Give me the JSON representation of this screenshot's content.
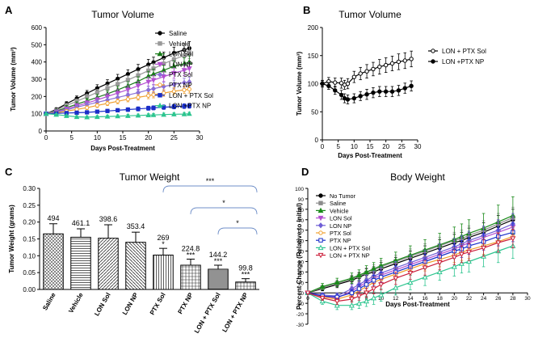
{
  "chart_data": [
    {
      "panel": "A",
      "type": "line",
      "title": "Tumor Volume",
      "xlabel": "Days Post-Treatment",
      "ylabel": "Tumor Volume (mm³)",
      "xlim": [
        0,
        30
      ],
      "ylim": [
        0,
        600
      ],
      "xticks": [
        0,
        5,
        10,
        15,
        20,
        25,
        30
      ],
      "yticks": [
        0,
        100,
        200,
        300,
        400,
        500,
        600
      ],
      "x": [
        0,
        2,
        4,
        6,
        8,
        10,
        12,
        14,
        16,
        18,
        20,
        21,
        23,
        25,
        27,
        28
      ],
      "series": [
        {
          "name": "Saline",
          "color": "#000000",
          "marker": "circle",
          "values": [
            100,
            125,
            158,
            188,
            218,
            248,
            275,
            303,
            330,
            358,
            385,
            398,
            425,
            452,
            470,
            480
          ],
          "error": [
            8,
            10,
            12,
            15,
            17,
            20,
            22,
            25,
            25,
            28,
            30,
            30,
            32,
            34,
            36,
            38
          ]
        },
        {
          "name": "Vehicle",
          "color": "#999999",
          "marker": "square",
          "values": [
            100,
            120,
            148,
            172,
            198,
            224,
            248,
            272,
            296,
            322,
            350,
            362,
            390,
            415,
            438,
            455
          ],
          "error": [
            8,
            10,
            12,
            14,
            16,
            18,
            20,
            22,
            24,
            26,
            28,
            28,
            30,
            32,
            35,
            36
          ]
        },
        {
          "name": "LON Sol",
          "color": "#1a7a1a",
          "marker": "triangle",
          "values": [
            100,
            115,
            135,
            155,
            175,
            195,
            215,
            238,
            262,
            288,
            318,
            330,
            352,
            375,
            390,
            400
          ],
          "error": [
            8,
            10,
            12,
            14,
            15,
            18,
            20,
            22,
            24,
            26,
            28,
            28,
            30,
            32,
            34,
            35
          ]
        },
        {
          "name": "LON NP",
          "color": "#b34fd1",
          "marker": "triangle-down",
          "values": [
            100,
            112,
            128,
            146,
            162,
            180,
            200,
            220,
            240,
            262,
            285,
            295,
            315,
            335,
            352,
            362
          ],
          "error": [
            8,
            9,
            11,
            13,
            14,
            16,
            18,
            20,
            22,
            24,
            26,
            26,
            28,
            30,
            32,
            33
          ]
        },
        {
          "name": "PTX Sol",
          "color": "#8a6fd6",
          "marker": "diamond",
          "values": [
            100,
            110,
            122,
            138,
            152,
            166,
            180,
            194,
            208,
            222,
            238,
            245,
            258,
            270,
            280,
            285
          ],
          "error": [
            7,
            8,
            10,
            12,
            13,
            14,
            16,
            17,
            18,
            20,
            22,
            22,
            24,
            25,
            26,
            26
          ]
        },
        {
          "name": "PTX NP",
          "color": "#f0a030",
          "marker": "circle-open",
          "values": [
            100,
            105,
            115,
            125,
            135,
            148,
            160,
            172,
            184,
            195,
            205,
            210,
            220,
            230,
            238,
            242
          ],
          "error": [
            7,
            8,
            9,
            10,
            11,
            12,
            13,
            14,
            15,
            16,
            18,
            18,
            19,
            20,
            21,
            22
          ]
        },
        {
          "name": "LON + PTX Sol",
          "color": "#1a2fc9",
          "marker": "square",
          "values": [
            100,
            102,
            104,
            106,
            108,
            112,
            116,
            120,
            124,
            128,
            132,
            134,
            138,
            141,
            144,
            146
          ],
          "error": [
            6,
            6,
            7,
            8,
            8,
            9,
            10,
            10,
            11,
            12,
            12,
            12,
            13,
            13,
            14,
            14
          ]
        },
        {
          "name": "LON +PTX NP",
          "color": "#2dc58f",
          "marker": "triangle",
          "values": [
            100,
            95,
            88,
            82,
            80,
            82,
            84,
            86,
            88,
            90,
            92,
            93,
            95,
            97,
            98,
            100
          ],
          "error": [
            6,
            6,
            6,
            7,
            7,
            7,
            7,
            8,
            8,
            8,
            8,
            8,
            9,
            9,
            9,
            9
          ]
        }
      ]
    },
    {
      "panel": "B",
      "type": "line",
      "title": "Tumor Volume",
      "xlabel": "Days Post-Treatment",
      "ylabel": "Tumor Volume (mm³)",
      "xlim": [
        0,
        30
      ],
      "ylim": [
        0,
        200
      ],
      "xticks": [
        0,
        5,
        10,
        15,
        20,
        25,
        30
      ],
      "yticks": [
        0,
        50,
        100,
        150,
        200
      ],
      "series": [
        {
          "name": "LON + PTX Sol",
          "color": "#000000",
          "marker": "circle-open",
          "x": [
            0,
            2,
            4,
            6,
            7,
            8,
            10,
            12,
            14,
            16,
            18,
            20,
            22,
            24,
            26,
            28
          ],
          "values": [
            100,
            104,
            102,
            101,
            98,
            100,
            112,
            118,
            122,
            126,
            130,
            133,
            136,
            139,
            141,
            144
          ],
          "error": [
            6,
            7,
            8,
            9,
            8,
            9,
            10,
            11,
            12,
            12,
            13,
            13,
            13,
            14,
            14,
            14
          ]
        },
        {
          "name": "LON +PTX NP",
          "color": "#000000",
          "marker": "circle",
          "x": [
            0,
            2,
            4,
            6,
            7,
            8,
            10,
            12,
            14,
            16,
            18,
            20,
            22,
            24,
            26,
            28
          ],
          "values": [
            100,
            96,
            88,
            80,
            74,
            72,
            74,
            78,
            81,
            84,
            86,
            86,
            86,
            88,
            92,
            96
          ],
          "error": [
            5,
            6,
            7,
            8,
            8,
            8,
            8,
            8,
            9,
            9,
            9,
            9,
            9,
            9,
            9,
            9
          ]
        }
      ]
    },
    {
      "panel": "C",
      "type": "bar",
      "title": "Tumor Weight",
      "xlabel": "",
      "ylabel": "Tumor Weight (grams)",
      "ylim": [
        0,
        0.3
      ],
      "yticks": [
        0.0,
        0.05,
        0.1,
        0.15,
        0.2,
        0.25,
        0.3
      ],
      "ytick_labels": [
        "0.00",
        "0.05",
        "0.10",
        "0.15",
        "0.20",
        "0.25",
        "0.30"
      ],
      "categories": [
        "Saline",
        "Vehicle",
        "LON Sol",
        "LON NP",
        "PTX Sol",
        "PTX NP",
        "LON + PTX Sol",
        "LON + PTX NP"
      ],
      "values": [
        0.165,
        0.155,
        0.152,
        0.14,
        0.102,
        0.072,
        0.06,
        0.022
      ],
      "error": [
        0.03,
        0.025,
        0.04,
        0.03,
        0.02,
        0.018,
        0.012,
        0.01
      ],
      "value_labels": [
        "494",
        "461.1",
        "398.6",
        "353.4",
        "269",
        "224.8",
        "144.2",
        "99.8"
      ],
      "significance": [
        "",
        "",
        "",
        "",
        "*",
        "***",
        "***",
        "***"
      ],
      "brackets": [
        {
          "from": 4,
          "to": 7,
          "label": "***"
        },
        {
          "from": 5,
          "to": 7,
          "label": "*"
        },
        {
          "from": 6,
          "to": 7,
          "label": "*"
        }
      ]
    },
    {
      "panel": "D",
      "type": "line",
      "title": "Body Weight",
      "xlabel": "Days Post-Treatment",
      "ylabel": "Percent Change (Relative to Initial)",
      "xlim": [
        0,
        30
      ],
      "ylim": [
        -30,
        100
      ],
      "xticks": [
        0,
        2,
        4,
        6,
        8,
        10,
        12,
        14,
        16,
        18,
        20,
        22,
        24,
        26,
        28,
        30
      ],
      "yticks": [
        -30,
        -20,
        -10,
        0,
        10,
        20,
        30,
        40,
        50,
        60,
        70,
        80,
        90,
        100
      ],
      "x": [
        0,
        2,
        4,
        6,
        7,
        8,
        9,
        10,
        12,
        14,
        16,
        18,
        20,
        21,
        22,
        24,
        26,
        28
      ],
      "series": [
        {
          "name": "No Tumor",
          "color": "#000000",
          "marker": "circle",
          "values": [
            0,
            4,
            8,
            12,
            15,
            18,
            20,
            23,
            28,
            33,
            38,
            43,
            48,
            50,
            53,
            58,
            64,
            70
          ],
          "error": [
            1,
            2,
            3,
            4,
            4,
            5,
            5,
            6,
            6,
            7,
            7,
            8,
            8,
            8,
            9,
            9,
            10,
            10
          ]
        },
        {
          "name": "Saline",
          "color": "#8c8c8c",
          "marker": "square",
          "values": [
            0,
            5,
            9,
            13,
            16,
            19,
            22,
            25,
            30,
            35,
            40,
            45,
            50,
            52,
            55,
            60,
            66,
            72
          ],
          "error": [
            1,
            2,
            3,
            4,
            4,
            5,
            5,
            6,
            6,
            7,
            7,
            8,
            8,
            8,
            9,
            9,
            10,
            10
          ]
        },
        {
          "name": "Vehicle",
          "color": "#1a8a1a",
          "marker": "triangle",
          "values": [
            0,
            6,
            10,
            14,
            17,
            20,
            23,
            26,
            31,
            36,
            41,
            46,
            51,
            54,
            57,
            62,
            68,
            74
          ],
          "error": [
            1,
            3,
            4,
            5,
            5,
            6,
            6,
            7,
            8,
            9,
            10,
            11,
            12,
            12,
            13,
            14,
            16,
            18
          ]
        },
        {
          "name": "LON Sol",
          "color": "#b34fd1",
          "marker": "triangle-down",
          "values": [
            0,
            -3,
            -5,
            2,
            6,
            10,
            14,
            17,
            22,
            27,
            32,
            37,
            42,
            45,
            48,
            53,
            58,
            63
          ],
          "error": [
            1,
            2,
            3,
            4,
            4,
            5,
            5,
            6,
            6,
            7,
            7,
            8,
            8,
            8,
            9,
            9,
            10,
            10
          ]
        },
        {
          "name": "LON NP",
          "color": "#6f5fd6",
          "marker": "diamond",
          "values": [
            0,
            -2,
            -3,
            4,
            8,
            12,
            16,
            19,
            24,
            29,
            34,
            39,
            44,
            47,
            50,
            55,
            60,
            66
          ],
          "error": [
            1,
            2,
            3,
            4,
            4,
            5,
            5,
            6,
            6,
            7,
            7,
            8,
            8,
            8,
            9,
            9,
            10,
            10
          ]
        },
        {
          "name": "PTX Sol",
          "color": "#f0a030",
          "marker": "circle-open",
          "values": [
            0,
            -4,
            -6,
            -2,
            2,
            6,
            10,
            13,
            18,
            23,
            28,
            32,
            36,
            39,
            41,
            45,
            49,
            54
          ],
          "error": [
            1,
            2,
            3,
            3,
            4,
            4,
            5,
            5,
            6,
            6,
            7,
            7,
            7,
            8,
            8,
            8,
            9,
            9
          ]
        },
        {
          "name": "PTX NP",
          "color": "#1a2fc9",
          "marker": "square-open",
          "values": [
            0,
            -3,
            -4,
            0,
            4,
            8,
            12,
            15,
            20,
            25,
            30,
            35,
            40,
            42,
            45,
            49,
            54,
            58
          ],
          "error": [
            1,
            2,
            3,
            3,
            4,
            4,
            5,
            5,
            6,
            6,
            7,
            7,
            7,
            8,
            8,
            8,
            9,
            9
          ]
        },
        {
          "name": "LON + PTX Sol",
          "color": "#2dc58f",
          "marker": "triangle-open",
          "values": [
            0,
            -8,
            -12,
            -12,
            -10,
            -8,
            -5,
            -2,
            5,
            10,
            15,
            20,
            25,
            28,
            30,
            35,
            40,
            45
          ],
          "error": [
            1,
            3,
            4,
            4,
            5,
            5,
            6,
            6,
            7,
            7,
            8,
            8,
            9,
            9,
            10,
            10,
            11,
            12
          ]
        },
        {
          "name": "LON + PTX NP",
          "color": "#cc1f3a",
          "marker": "triangle-down-open",
          "values": [
            0,
            -5,
            -8,
            -6,
            -3,
            0,
            4,
            8,
            14,
            19,
            24,
            29,
            34,
            37,
            39,
            43,
            48,
            52
          ],
          "error": [
            1,
            2,
            3,
            3,
            4,
            4,
            5,
            5,
            6,
            6,
            7,
            7,
            7,
            8,
            8,
            8,
            9,
            9
          ]
        }
      ]
    }
  ],
  "panel_letters": [
    "A",
    "B",
    "C",
    "D"
  ]
}
